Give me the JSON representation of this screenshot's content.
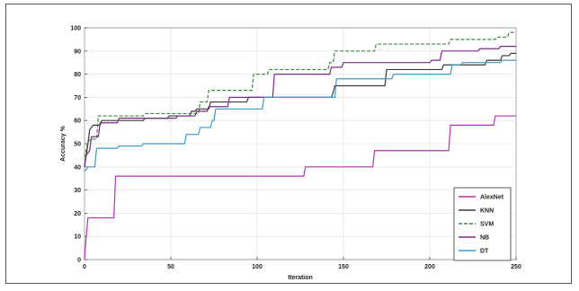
{
  "chart_data": {
    "type": "line",
    "title": "",
    "xlabel": "Iteration",
    "ylabel": "Accuracy %",
    "xlim": [
      0,
      250
    ],
    "ylim": [
      0,
      100
    ],
    "xticks": [
      0,
      50,
      100,
      150,
      200,
      250
    ],
    "yticks": [
      0,
      10,
      20,
      30,
      40,
      50,
      60,
      70,
      80,
      90,
      100
    ],
    "grid": true,
    "legend_position": "bottom-right",
    "series": [
      {
        "name": "AlexNet",
        "color": "#b432b4",
        "dash": "solid",
        "points": [
          [
            0,
            0
          ],
          [
            1,
            10
          ],
          [
            2,
            18
          ],
          [
            17,
            18
          ],
          [
            18,
            36
          ],
          [
            127,
            36
          ],
          [
            128,
            40
          ],
          [
            167,
            40
          ],
          [
            168,
            47
          ],
          [
            211,
            47
          ],
          [
            212,
            58
          ],
          [
            237,
            58
          ],
          [
            238,
            62
          ],
          [
            250,
            62
          ]
        ]
      },
      {
        "name": "KNN",
        "color": "#3a3a3a",
        "dash": "solid",
        "points": [
          [
            0,
            40
          ],
          [
            2,
            50
          ],
          [
            3,
            56
          ],
          [
            5,
            58
          ],
          [
            9,
            58
          ],
          [
            10,
            60
          ],
          [
            34,
            60
          ],
          [
            35,
            61
          ],
          [
            48,
            61
          ],
          [
            49,
            62
          ],
          [
            61,
            62
          ],
          [
            62,
            64
          ],
          [
            64,
            64
          ],
          [
            65,
            65
          ],
          [
            72,
            65
          ],
          [
            73,
            68
          ],
          [
            94,
            68
          ],
          [
            95,
            70
          ],
          [
            143,
            70
          ],
          [
            144,
            72
          ],
          [
            145,
            75
          ],
          [
            174,
            75
          ],
          [
            175,
            82
          ],
          [
            207,
            82
          ],
          [
            208,
            84
          ],
          [
            232,
            84
          ],
          [
            233,
            86
          ],
          [
            241,
            86
          ],
          [
            242,
            88
          ],
          [
            246,
            88
          ],
          [
            247,
            89
          ],
          [
            250,
            89
          ]
        ]
      },
      {
        "name": "SVM",
        "color": "#3a8a3a",
        "dash": "dashed",
        "points": [
          [
            0,
            44
          ],
          [
            2,
            51
          ],
          [
            4,
            52
          ],
          [
            7,
            52
          ],
          [
            8,
            62
          ],
          [
            34,
            62
          ],
          [
            35,
            63
          ],
          [
            66,
            63
          ],
          [
            67,
            68
          ],
          [
            71,
            68
          ],
          [
            72,
            73
          ],
          [
            97,
            73
          ],
          [
            98,
            80
          ],
          [
            106,
            80
          ],
          [
            107,
            82
          ],
          [
            141,
            82
          ],
          [
            142,
            85
          ],
          [
            144,
            85
          ],
          [
            145,
            90
          ],
          [
            168,
            90
          ],
          [
            169,
            93
          ],
          [
            211,
            93
          ],
          [
            212,
            95
          ],
          [
            238,
            95
          ],
          [
            239,
            96
          ],
          [
            245,
            96
          ],
          [
            246,
            98
          ],
          [
            250,
            98
          ]
        ]
      },
      {
        "name": "NB",
        "color": "#7a2a8a",
        "dash": "solid",
        "points": [
          [
            0,
            40
          ],
          [
            1,
            45
          ],
          [
            3,
            47
          ],
          [
            4,
            53
          ],
          [
            8,
            53
          ],
          [
            9,
            59
          ],
          [
            19,
            59
          ],
          [
            20,
            61
          ],
          [
            53,
            61
          ],
          [
            54,
            62
          ],
          [
            64,
            62
          ],
          [
            65,
            64
          ],
          [
            71,
            64
          ],
          [
            72,
            66
          ],
          [
            83,
            66
          ],
          [
            84,
            70
          ],
          [
            109,
            70
          ],
          [
            110,
            80
          ],
          [
            142,
            80
          ],
          [
            143,
            83
          ],
          [
            149,
            83
          ],
          [
            150,
            85
          ],
          [
            200,
            85
          ],
          [
            201,
            86
          ],
          [
            206,
            86
          ],
          [
            207,
            90
          ],
          [
            228,
            90
          ],
          [
            229,
            91
          ],
          [
            240,
            91
          ],
          [
            241,
            92
          ],
          [
            250,
            92
          ]
        ]
      },
      {
        "name": "DT",
        "color": "#3a9ac8",
        "dash": "solid",
        "points": [
          [
            0,
            38
          ],
          [
            1,
            39
          ],
          [
            2,
            40
          ],
          [
            6,
            40
          ],
          [
            7,
            48
          ],
          [
            19,
            48
          ],
          [
            20,
            49
          ],
          [
            33,
            49
          ],
          [
            34,
            50
          ],
          [
            58,
            50
          ],
          [
            59,
            54
          ],
          [
            66,
            54
          ],
          [
            67,
            57
          ],
          [
            73,
            57
          ],
          [
            74,
            60
          ],
          [
            75,
            60
          ],
          [
            76,
            65
          ],
          [
            103,
            65
          ],
          [
            104,
            70
          ],
          [
            145,
            70
          ],
          [
            146,
            78
          ],
          [
            178,
            78
          ],
          [
            179,
            80
          ],
          [
            212,
            80
          ],
          [
            213,
            84
          ],
          [
            218,
            84
          ],
          [
            219,
            85
          ],
          [
            241,
            85
          ],
          [
            242,
            86
          ],
          [
            250,
            86
          ]
        ]
      }
    ]
  }
}
